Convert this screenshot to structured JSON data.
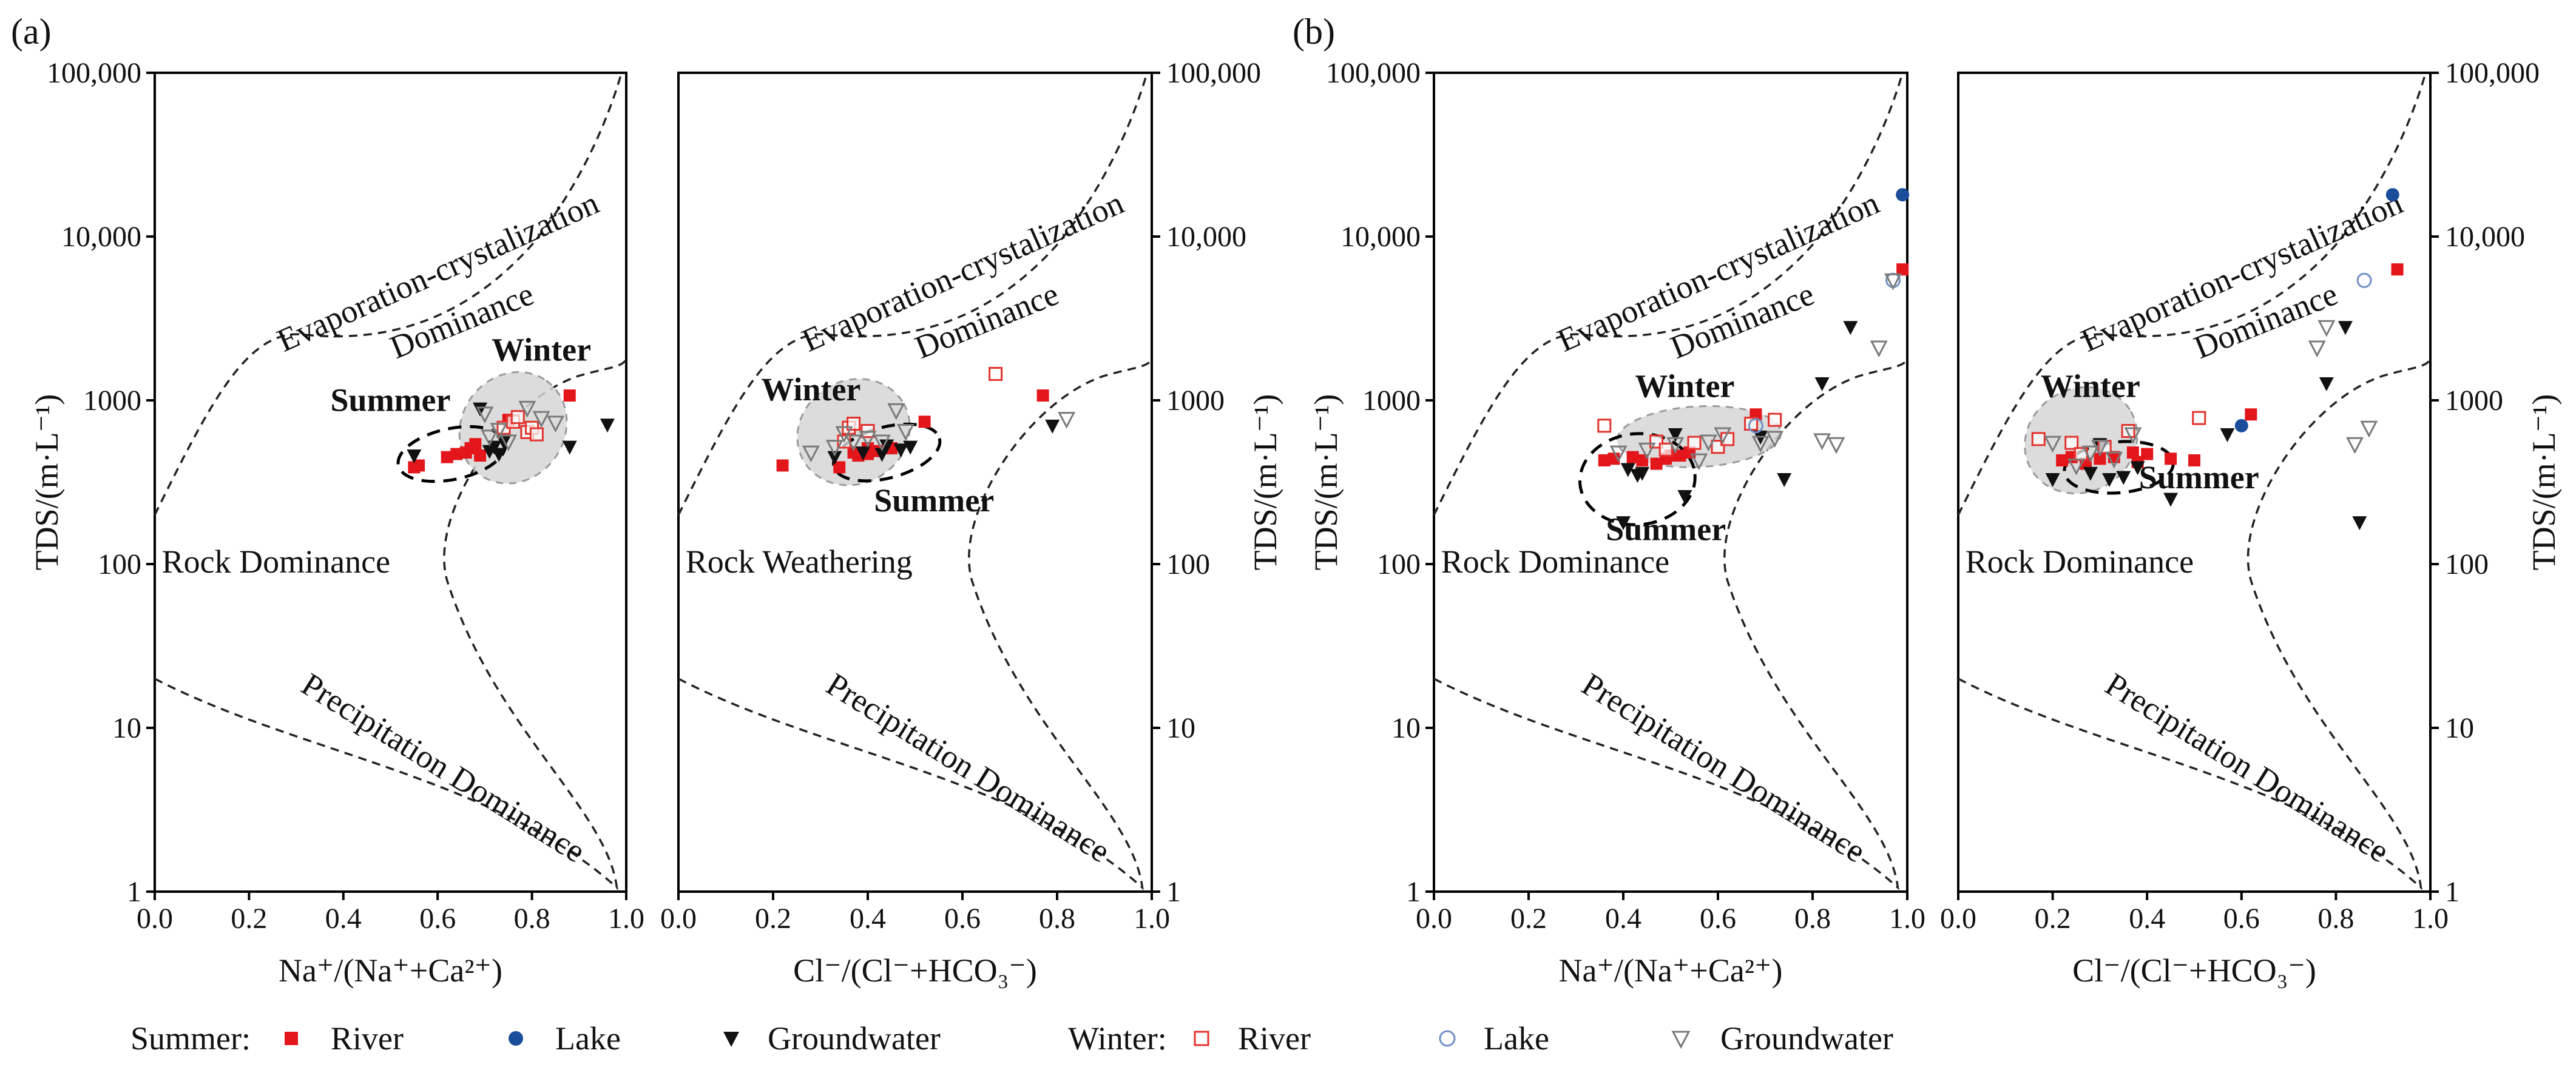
{
  "figure": {
    "panel_labels": [
      "(a)",
      "(b)"
    ],
    "y_axis_label": "TDS/(m·L⁻¹)",
    "x_axis_label_na": "Na⁺/(Na⁺+Ca²⁺)",
    "x_axis_label_cl": "Cl⁻/(Cl⁻+HCO₃⁻)",
    "x_ticks": [
      "0.0",
      "0.2",
      "0.4",
      "0.6",
      "0.8",
      "1.0"
    ],
    "y_ticks": [
      "1",
      "10",
      "100",
      "1000",
      "10,000",
      "100,000"
    ],
    "region_labels": {
      "evaporation": "Evaporation-crystalization",
      "dominance": "Dominance",
      "precipitation": "Precipitation Dominance",
      "rock_dominance": "Rock Dominance",
      "rock_weathering": "Rock Weathering"
    },
    "season_labels": {
      "winter": "Winter",
      "summer": "Summer"
    }
  },
  "legend": {
    "summer_label": "Summer:",
    "winter_label": "Winter:",
    "river": "River",
    "lake": "Lake",
    "groundwater": "Groundwater"
  },
  "colors": {
    "summer_river": "#e3161b",
    "winter_river": "#f0938f",
    "winter_river_stroke": "#e3322d",
    "lake": "#1a4e9a",
    "groundwater": "#111111",
    "winter_groundwater_stroke": "#7a7a7a",
    "winter_region_fill": "#d6d6d6"
  },
  "chart_data": [
    {
      "type": "scatter",
      "panel": "(a)",
      "xlabel": "Na⁺/(Na⁺+Ca²⁺)",
      "ylabel": "TDS/(m·L⁻¹)",
      "xlim": [
        0,
        1
      ],
      "ylim": [
        1,
        100000
      ],
      "yscale": "log",
      "region_label": "rock_dominance",
      "series": [
        {
          "name": "Summer River",
          "marker": "filled-square",
          "color": "summer_river",
          "points": [
            [
              0.55,
              390
            ],
            [
              0.56,
              400
            ],
            [
              0.62,
              450
            ],
            [
              0.64,
              470
            ],
            [
              0.66,
              480
            ],
            [
              0.67,
              510
            ],
            [
              0.68,
              540
            ],
            [
              0.69,
              460
            ],
            [
              0.75,
              760
            ],
            [
              0.88,
              1070
            ]
          ]
        },
        {
          "name": "Summer Groundwater",
          "marker": "filled-triangle-down",
          "color": "groundwater",
          "points": [
            [
              0.55,
              460
            ],
            [
              0.69,
              890
            ],
            [
              0.71,
              490
            ],
            [
              0.72,
              520
            ],
            [
              0.73,
              470
            ],
            [
              0.74,
              560
            ],
            [
              0.88,
              520
            ],
            [
              0.96,
              710
            ]
          ]
        },
        {
          "name": "Winter River",
          "marker": "open-square",
          "color": "winter_river",
          "points": [
            [
              0.74,
              680
            ],
            [
              0.76,
              740
            ],
            [
              0.79,
              640
            ],
            [
              0.8,
              680
            ],
            [
              0.81,
              620
            ],
            [
              0.77,
              790
            ]
          ]
        },
        {
          "name": "Winter Groundwater",
          "marker": "open-triangle-down",
          "color": "groundwater",
          "points": [
            [
              0.7,
              830
            ],
            [
              0.71,
              600
            ],
            [
              0.73,
              660
            ],
            [
              0.75,
              560
            ],
            [
              0.79,
              900
            ],
            [
              0.82,
              780
            ],
            [
              0.85,
              730
            ]
          ]
        }
      ],
      "season_regions": [
        {
          "label": "winter",
          "style": "filled",
          "center": [
            0.76,
            680
          ],
          "label_at": [
            0.82,
            1750
          ]
        },
        {
          "label": "summer",
          "style": "dashed",
          "center": [
            0.63,
            470
          ],
          "label_at": [
            0.5,
            860
          ]
        }
      ]
    },
    {
      "type": "scatter",
      "panel": "(a)",
      "xlabel": "Cl⁻/(Cl⁻+HCO₃⁻)",
      "ylabel": "TDS/(m·L⁻¹)",
      "xlim": [
        0,
        1
      ],
      "ylim": [
        1,
        100000
      ],
      "yscale": "log",
      "region_label": "rock_weathering",
      "series": [
        {
          "name": "Summer River",
          "marker": "filled-square",
          "color": "summer_river",
          "points": [
            [
              0.22,
              400
            ],
            [
              0.34,
              390
            ],
            [
              0.37,
              480
            ],
            [
              0.38,
              460
            ],
            [
              0.4,
              470
            ],
            [
              0.4,
              510
            ],
            [
              0.42,
              490
            ],
            [
              0.45,
              510
            ],
            [
              0.52,
              740
            ],
            [
              0.77,
              1070
            ]
          ]
        },
        {
          "name": "Summer Groundwater",
          "marker": "filled-triangle-down",
          "color": "groundwater",
          "points": [
            [
              0.33,
              450
            ],
            [
              0.39,
              480
            ],
            [
              0.43,
              470
            ],
            [
              0.44,
              530
            ],
            [
              0.47,
              500
            ],
            [
              0.49,
              520
            ],
            [
              0.79,
              700
            ]
          ]
        },
        {
          "name": "Winter River",
          "marker": "open-square",
          "color": "winter_river",
          "points": [
            [
              0.35,
              560
            ],
            [
              0.36,
              680
            ],
            [
              0.37,
              720
            ],
            [
              0.4,
              650
            ],
            [
              0.67,
              1450
            ]
          ]
        },
        {
          "name": "Winter Groundwater",
          "marker": "open-triangle-down",
          "color": "groundwater",
          "points": [
            [
              0.28,
              480
            ],
            [
              0.33,
              520
            ],
            [
              0.35,
              630
            ],
            [
              0.37,
              560
            ],
            [
              0.4,
              590
            ],
            [
              0.43,
              560
            ],
            [
              0.46,
              870
            ],
            [
              0.48,
              650
            ],
            [
              0.82,
              770
            ]
          ]
        }
      ],
      "season_regions": [
        {
          "label": "winter",
          "style": "filled",
          "center": [
            0.37,
            640
          ],
          "label_at": [
            0.28,
            1000
          ]
        },
        {
          "label": "summer",
          "style": "dashed",
          "center": [
            0.44,
            480
          ],
          "label_at": [
            0.54,
            210
          ]
        }
      ]
    },
    {
      "type": "scatter",
      "panel": "(b)",
      "xlabel": "Na⁺/(Na⁺+Ca²⁺)",
      "ylabel": "TDS/(m·L⁻¹)",
      "xlim": [
        0,
        1
      ],
      "ylim": [
        1,
        100000
      ],
      "yscale": "log",
      "region_label": "rock_dominance",
      "series": [
        {
          "name": "Summer River",
          "marker": "filled-square",
          "color": "summer_river",
          "points": [
            [
              0.36,
              430
            ],
            [
              0.38,
              440
            ],
            [
              0.42,
              450
            ],
            [
              0.44,
              430
            ],
            [
              0.47,
              410
            ],
            [
              0.49,
              440
            ],
            [
              0.5,
              460
            ],
            [
              0.52,
              460
            ],
            [
              0.54,
              480
            ],
            [
              0.68,
              820
            ],
            [
              0.99,
              6300
            ]
          ]
        },
        {
          "name": "Summer Lake",
          "marker": "filled-circle",
          "color": "lake",
          "points": [
            [
              0.99,
              18000
            ]
          ]
        },
        {
          "name": "Summer Groundwater",
          "marker": "filled-triangle-down",
          "color": "groundwater",
          "points": [
            [
              0.4,
              180
            ],
            [
              0.41,
              380
            ],
            [
              0.43,
              350
            ],
            [
              0.44,
              360
            ],
            [
              0.51,
              620
            ],
            [
              0.53,
              260
            ],
            [
              0.69,
              600
            ],
            [
              0.74,
              330
            ],
            [
              0.82,
              1270
            ],
            [
              0.88,
              2800
            ]
          ]
        },
        {
          "name": "Winter River",
          "marker": "open-square",
          "color": "winter_river",
          "points": [
            [
              0.36,
              700
            ],
            [
              0.47,
              560
            ],
            [
              0.49,
              500
            ],
            [
              0.55,
              550
            ],
            [
              0.6,
              520
            ],
            [
              0.62,
              580
            ],
            [
              0.67,
              720
            ],
            [
              0.72,
              760
            ]
          ]
        },
        {
          "name": "Winter Lake",
          "marker": "open-circle",
          "color": "lake",
          "points": [
            [
              0.68,
              700
            ],
            [
              0.97,
              5400
            ]
          ]
        },
        {
          "name": "Winter Groundwater",
          "marker": "open-triangle-down",
          "color": "groundwater",
          "points": [
            [
              0.39,
              480
            ],
            [
              0.45,
              500
            ],
            [
              0.51,
              540
            ],
            [
              0.56,
              430
            ],
            [
              0.58,
              560
            ],
            [
              0.61,
              620
            ],
            [
              0.69,
              550
            ],
            [
              0.72,
              590
            ],
            [
              0.82,
              570
            ],
            [
              0.85,
              540
            ],
            [
              0.94,
              2100
            ],
            [
              0.97,
              5400
            ]
          ]
        }
      ],
      "season_regions": [
        {
          "label": "winter",
          "style": "filled",
          "center": [
            0.56,
            600
          ],
          "label_at": [
            0.53,
            1050
          ]
        },
        {
          "label": "summer",
          "style": "dashed",
          "center": [
            0.43,
            330
          ],
          "label_at": [
            0.49,
            140
          ]
        }
      ]
    },
    {
      "type": "scatter",
      "panel": "(b)",
      "xlabel": "Cl⁻/(Cl⁻+HCO₃⁻)",
      "ylabel": "TDS/(m·L⁻¹)",
      "xlim": [
        0,
        1
      ],
      "ylim": [
        1,
        100000
      ],
      "yscale": "log",
      "region_label": "rock_dominance",
      "series": [
        {
          "name": "Summer River",
          "marker": "filled-square",
          "color": "summer_river",
          "points": [
            [
              0.22,
              430
            ],
            [
              0.24,
              450
            ],
            [
              0.27,
              410
            ],
            [
              0.3,
              440
            ],
            [
              0.33,
              450
            ],
            [
              0.37,
              480
            ],
            [
              0.38,
              420
            ],
            [
              0.4,
              470
            ],
            [
              0.45,
              440
            ],
            [
              0.5,
              430
            ],
            [
              0.62,
              820
            ],
            [
              0.93,
              6300
            ]
          ]
        },
        {
          "name": "Summer Lake",
          "marker": "filled-circle",
          "color": "lake",
          "points": [
            [
              0.6,
              700
            ],
            [
              0.92,
              18000
            ]
          ]
        },
        {
          "name": "Summer Groundwater",
          "marker": "filled-triangle-down",
          "color": "groundwater",
          "points": [
            [
              0.2,
              330
            ],
            [
              0.28,
              360
            ],
            [
              0.3,
              540
            ],
            [
              0.32,
              330
            ],
            [
              0.35,
              340
            ],
            [
              0.38,
              390
            ],
            [
              0.45,
              250
            ],
            [
              0.57,
              620
            ],
            [
              0.78,
              1270
            ],
            [
              0.82,
              2800
            ],
            [
              0.85,
              180
            ]
          ]
        },
        {
          "name": "Winter River",
          "marker": "open-square",
          "color": "winter_river",
          "points": [
            [
              0.17,
              580
            ],
            [
              0.24,
              550
            ],
            [
              0.26,
              470
            ],
            [
              0.31,
              520
            ],
            [
              0.36,
              650
            ],
            [
              0.51,
              780
            ]
          ]
        },
        {
          "name": "Winter Lake",
          "marker": "open-circle",
          "color": "lake",
          "points": [
            [
              0.86,
              5400
            ]
          ]
        },
        {
          "name": "Winter Groundwater",
          "marker": "open-triangle-down",
          "color": "groundwater",
          "points": [
            [
              0.2,
              550
            ],
            [
              0.25,
              400
            ],
            [
              0.28,
              480
            ],
            [
              0.3,
              520
            ],
            [
              0.33,
              440
            ],
            [
              0.37,
              620
            ],
            [
              0.76,
              2100
            ],
            [
              0.78,
              2800
            ],
            [
              0.84,
              540
            ],
            [
              0.87,
              680
            ]
          ]
        }
      ],
      "season_regions": [
        {
          "label": "winter",
          "style": "filled",
          "center": [
            0.26,
            570
          ],
          "label_at": [
            0.28,
            1050
          ]
        },
        {
          "label": "summer",
          "style": "dashed",
          "center": [
            0.34,
            390
          ],
          "label_at": [
            0.51,
            290
          ]
        }
      ]
    }
  ]
}
